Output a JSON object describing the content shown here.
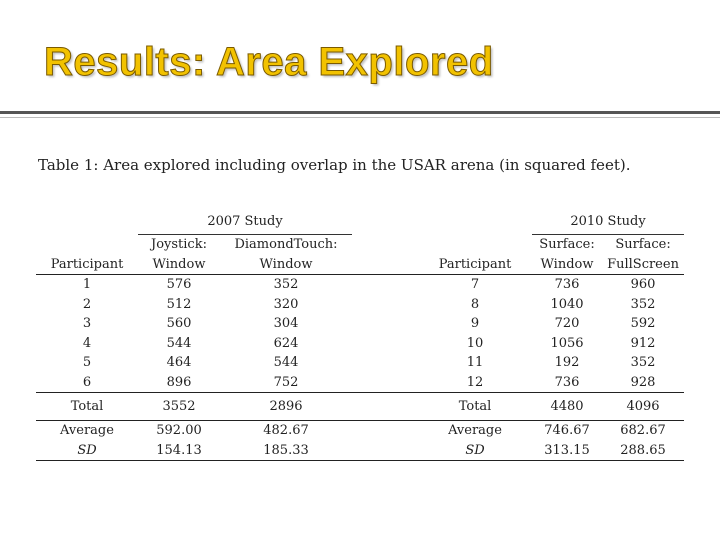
{
  "slide": {
    "title": "Results: Area Explored"
  },
  "table": {
    "caption": "Table 1:  Area explored including overlap in the USAR arena (in squared feet).",
    "left_group": "2007 Study",
    "right_group": "2010 Study",
    "left_headers": {
      "participant": "Participant",
      "col1": [
        "Joystick:",
        "Window"
      ],
      "col2": [
        "DiamondTouch:",
        "Window"
      ]
    },
    "right_headers": {
      "participant": "Participant",
      "col1": [
        "Surface:",
        "Window"
      ],
      "col2": [
        "Surface:",
        "FullScreen"
      ]
    },
    "rows": [
      {
        "lp": "1",
        "l1": "576",
        "l2": "352",
        "rp": "7",
        "r1": "736",
        "r2": "960"
      },
      {
        "lp": "2",
        "l1": "512",
        "l2": "320",
        "rp": "8",
        "r1": "1040",
        "r2": "352"
      },
      {
        "lp": "3",
        "l1": "560",
        "l2": "304",
        "rp": "9",
        "r1": "720",
        "r2": "592"
      },
      {
        "lp": "4",
        "l1": "544",
        "l2": "624",
        "rp": "10",
        "r1": "1056",
        "r2": "912"
      },
      {
        "lp": "5",
        "l1": "464",
        "l2": "544",
        "rp": "11",
        "r1": "192",
        "r2": "352"
      },
      {
        "lp": "6",
        "l1": "896",
        "l2": "752",
        "rp": "12",
        "r1": "736",
        "r2": "928"
      }
    ],
    "total": {
      "ll": "Total",
      "l1": "3552",
      "l2": "2896",
      "rl": "Total",
      "r1": "4480",
      "r2": "4096"
    },
    "average": {
      "ll": "Average",
      "l1": "592.00",
      "l2": "482.67",
      "rl": "Average",
      "r1": "746.67",
      "r2": "682.67"
    },
    "sd": {
      "ll": "SD",
      "l1": "154.13",
      "l2": "185.33",
      "rl": "SD",
      "r1": "313.15",
      "r2": "288.65"
    }
  }
}
